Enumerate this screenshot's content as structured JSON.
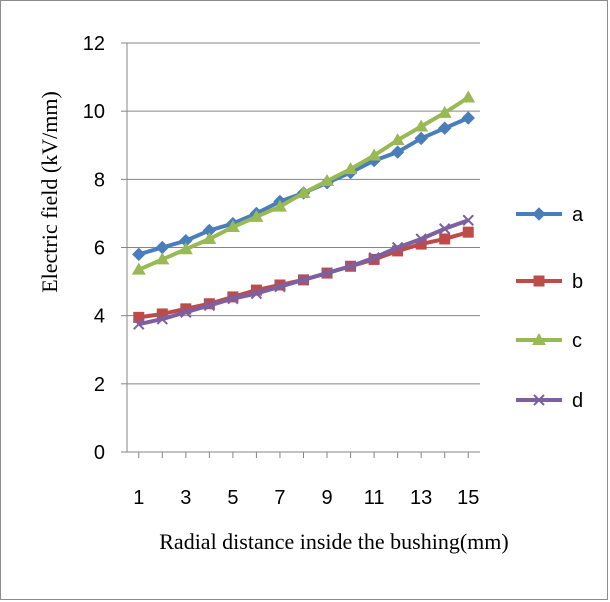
{
  "chart_data": {
    "type": "line",
    "title": "",
    "xlabel": "Radial distance inside the bushing(mm)",
    "ylabel": "Electric field (kV/mm)",
    "x": [
      1,
      2,
      3,
      4,
      5,
      6,
      7,
      8,
      9,
      10,
      11,
      12,
      13,
      14,
      15
    ],
    "x_tick_labels": [
      "1",
      "3",
      "5",
      "7",
      "9",
      "11",
      "13",
      "15"
    ],
    "y_tick_labels": [
      "0",
      "2",
      "4",
      "6",
      "8",
      "10",
      "12"
    ],
    "xlim": [
      0.5,
      15.5
    ],
    "ylim": [
      0,
      12
    ],
    "grid": "horizontal",
    "legend_position": "right",
    "series": [
      {
        "name": "a",
        "color": "#4a7ebb",
        "marker": "diamond",
        "values": [
          5.8,
          6.0,
          6.2,
          6.5,
          6.7,
          7.0,
          7.35,
          7.6,
          7.9,
          8.2,
          8.55,
          8.8,
          9.2,
          9.5,
          9.8
        ]
      },
      {
        "name": "b",
        "color": "#be4b48",
        "marker": "square",
        "values": [
          3.95,
          4.05,
          4.2,
          4.35,
          4.55,
          4.75,
          4.9,
          5.05,
          5.25,
          5.45,
          5.65,
          5.9,
          6.1,
          6.25,
          6.45
        ]
      },
      {
        "name": "c",
        "color": "#98b954",
        "marker": "triangle",
        "values": [
          5.35,
          5.65,
          5.95,
          6.25,
          6.6,
          6.9,
          7.2,
          7.6,
          7.95,
          8.3,
          8.7,
          9.15,
          9.55,
          9.95,
          10.4
        ]
      },
      {
        "name": "d",
        "color": "#7d60a0",
        "marker": "x",
        "values": [
          3.75,
          3.9,
          4.1,
          4.3,
          4.5,
          4.65,
          4.85,
          5.05,
          5.25,
          5.45,
          5.7,
          6.0,
          6.25,
          6.55,
          6.8
        ]
      }
    ]
  }
}
